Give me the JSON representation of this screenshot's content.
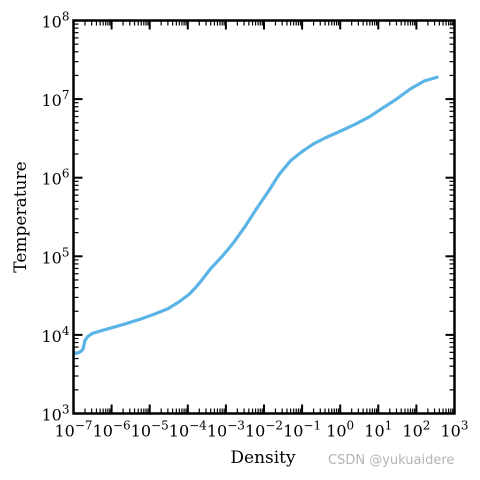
{
  "chart_data": {
    "type": "line",
    "title": "",
    "xlabel": "Density",
    "ylabel": "Temperature",
    "xscale": "log",
    "yscale": "log",
    "xlim": [
      1e-07,
      1000
    ],
    "ylim": [
      1000,
      100000000
    ],
    "grid": false,
    "x_tick_exponents": [
      -7,
      -6,
      -5,
      -4,
      -3,
      -2,
      -1,
      0,
      1,
      2,
      3
    ],
    "y_tick_exponents": [
      3,
      4,
      5,
      6,
      7,
      8
    ],
    "series": [
      {
        "color": "#5ab4e5",
        "x": [
          1.05e-07,
          1.3e-07,
          1.6e-07,
          1.8e-07,
          2e-07,
          2.4e-07,
          3.2e-07,
          5e-07,
          1e-06,
          2.5e-06,
          6e-06,
          1.3e-05,
          3e-05,
          6e-05,
          0.00011,
          0.00016,
          0.00025,
          0.0004,
          0.0008,
          0.0016,
          0.0032,
          0.0063,
          0.013,
          0.025,
          0.05,
          0.1,
          0.13,
          0.2,
          0.4,
          1,
          2.5,
          6,
          13,
          30,
          70,
          160,
          350
        ],
        "y": [
          5800,
          5900,
          6200,
          6700,
          8500,
          9600,
          10500,
          11200,
          12300,
          14000,
          16000,
          18300,
          21500,
          26500,
          33000,
          40000,
          52000,
          70000,
          100000,
          150000,
          240000,
          400000,
          670000,
          1100000,
          1650000,
          2150000,
          2350000,
          2700000,
          3200000,
          3900000,
          4800000,
          6000000,
          7700000,
          10000000,
          13500000,
          17000000,
          19000000
        ]
      }
    ]
  }
}
